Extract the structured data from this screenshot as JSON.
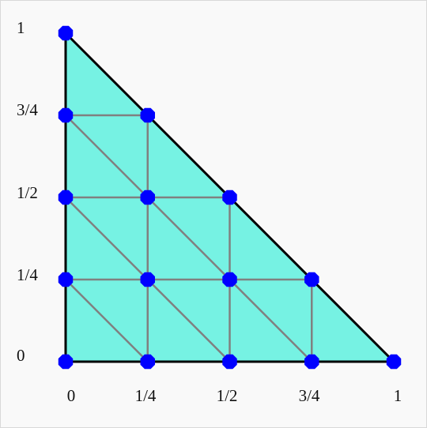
{
  "diagram": {
    "x_tick_labels": [
      "0",
      "1/4",
      "1/2",
      "3/4",
      "1"
    ],
    "y_tick_labels": [
      "0",
      "1/4",
      "1/2",
      "3/4",
      "1"
    ],
    "subdivisions": 4,
    "colors": {
      "fill": "#76f2e3",
      "outline": "#000000",
      "mesh": "#808080",
      "node": "#0000ff",
      "background": "#f9f9f9"
    }
  }
}
